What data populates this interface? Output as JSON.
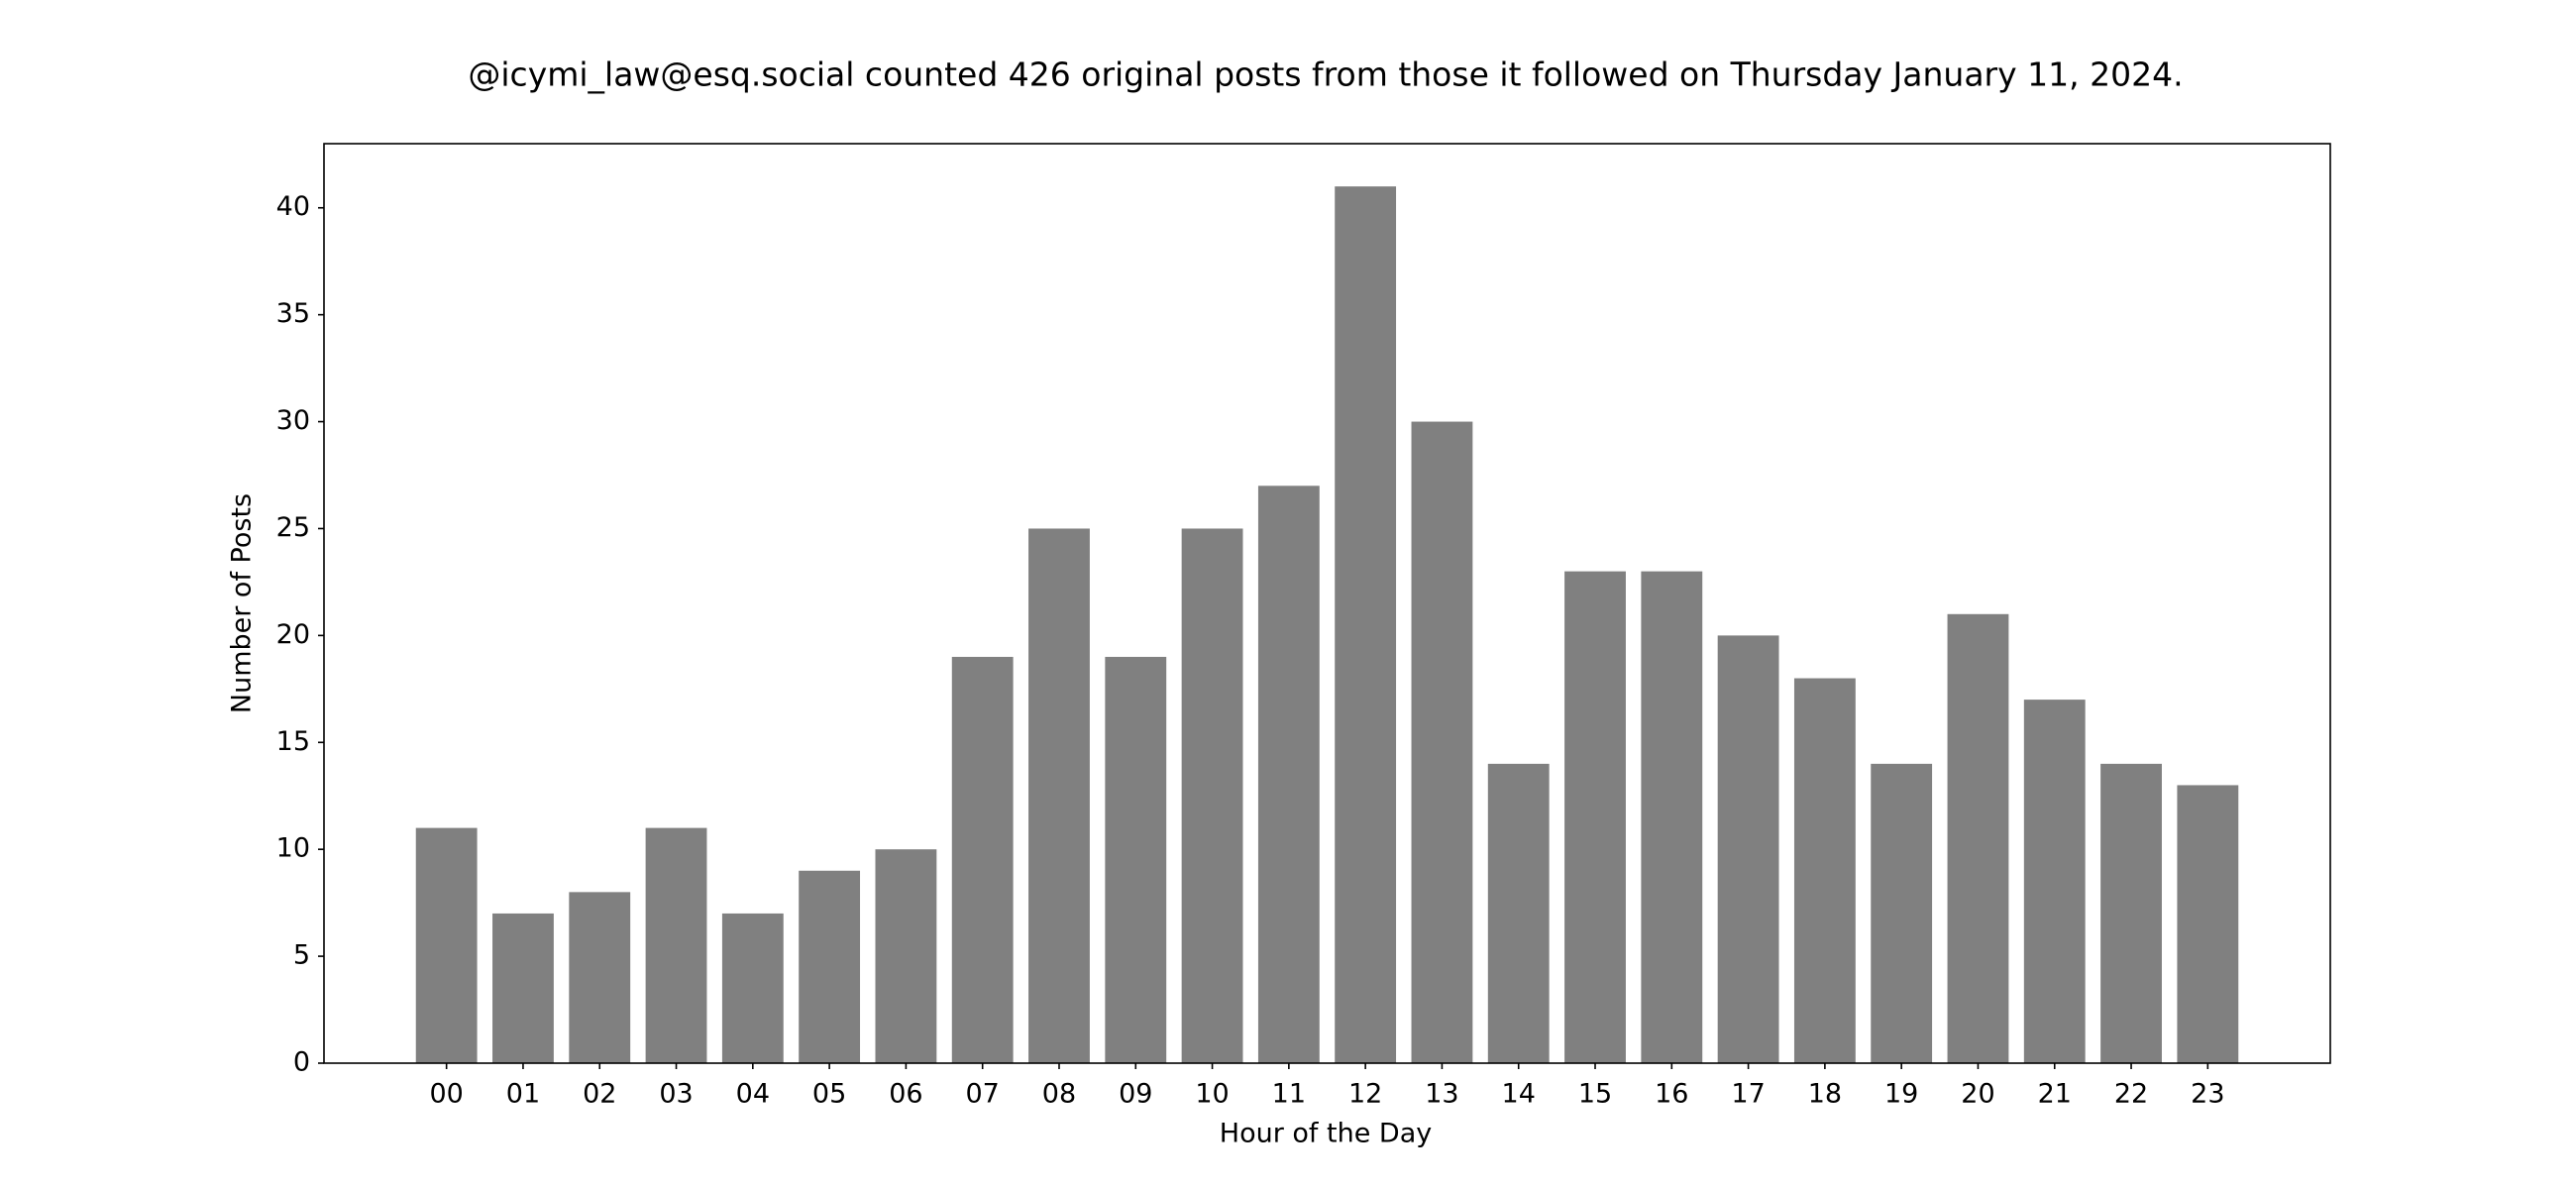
{
  "chart_data": {
    "type": "bar",
    "title": "@icymi_law@esq.social counted 426 original posts from those it followed on Thursday January 11, 2024.",
    "x_label": "Hour of the Day",
    "y_label": "Number of Posts",
    "categories": [
      "00",
      "01",
      "02",
      "03",
      "04",
      "05",
      "06",
      "07",
      "08",
      "09",
      "10",
      "11",
      "12",
      "13",
      "14",
      "15",
      "16",
      "17",
      "18",
      "19",
      "20",
      "21",
      "22",
      "23"
    ],
    "values": [
      11,
      7,
      8,
      11,
      7,
      9,
      10,
      19,
      25,
      19,
      25,
      27,
      41,
      30,
      14,
      23,
      23,
      20,
      18,
      14,
      21,
      17,
      14,
      13
    ],
    "color": "#808080",
    "ylim": [
      0,
      43
    ],
    "yticks": [
      0,
      5,
      10,
      15,
      20,
      25,
      30,
      35,
      40
    ],
    "grid": false
  }
}
